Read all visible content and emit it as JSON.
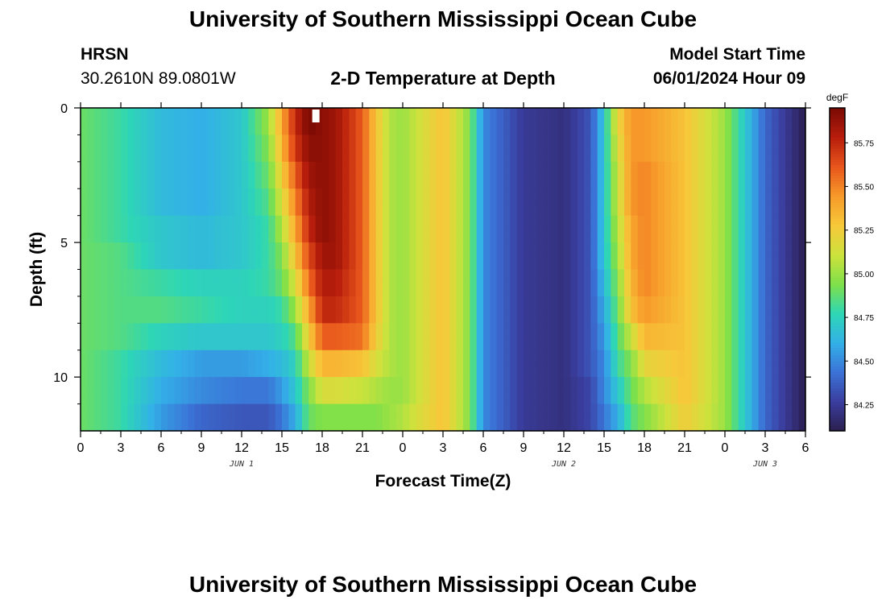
{
  "header": {
    "title": "University of Southern Mississippi Ocean Cube",
    "station": "HRSN",
    "coords": "30.2610N  89.0801W",
    "chart_title": "2-D Temperature at Depth",
    "model_label": "Model Start Time",
    "model_time": "06/01/2024 Hour 09"
  },
  "footer": {
    "title": "University of Southern Mississippi Ocean Cube"
  },
  "colors": {
    "ramp": [
      "#2b1f4e",
      "#3a3d9e",
      "#3b72d6",
      "#33b0e8",
      "#2ed6b6",
      "#7ee04a",
      "#cde23c",
      "#f7c93a",
      "#f79a2a",
      "#e8561c",
      "#b81e0c",
      "#7a0a04"
    ]
  },
  "chart_data": {
    "type": "heatmap",
    "title": "2-D Temperature at Depth",
    "xlabel": "Forecast Time(Z)",
    "ylabel": "Depth (ft)",
    "x_ticks": [
      "0",
      "3",
      "6",
      "9",
      "12",
      "15",
      "18",
      "21",
      "0",
      "3",
      "6",
      "9",
      "12",
      "15",
      "18",
      "21",
      "0",
      "3",
      "6"
    ],
    "date_labels": [
      {
        "text": "JUN 1",
        "at_hour": 12
      },
      {
        "text": "JUN 2",
        "at_hour": 36
      },
      {
        "text": "JUN 3",
        "at_hour": 51
      }
    ],
    "x_range_hours": [
      0,
      54
    ],
    "y_ticks": [
      0,
      5,
      10
    ],
    "ylim": [
      0,
      12
    ],
    "colorbar": {
      "unit": "degF",
      "vmin": 84.1,
      "vmax": 85.95,
      "tick_labels": [
        "85.75",
        "85.50",
        "85.25",
        "85.00",
        "84.75",
        "84.50",
        "84.25"
      ],
      "tick_values": [
        85.75,
        85.5,
        85.25,
        85.0,
        84.75,
        84.5,
        84.25
      ]
    },
    "marker_hour": 17.5,
    "column_hours": [
      0,
      3,
      6,
      9,
      12,
      14,
      15,
      16,
      17,
      18,
      19,
      21,
      22,
      23,
      24,
      27,
      29,
      30,
      33,
      36,
      38,
      39,
      40,
      41,
      42,
      45,
      48,
      51,
      54
    ],
    "depth_rows": [
      0,
      0.5,
      1,
      1.5,
      2,
      2.5,
      3,
      3.5,
      4,
      4.5,
      5,
      5.5,
      6,
      6.5,
      7,
      7.5,
      8,
      8.5,
      9,
      9.5,
      10,
      10.5,
      11,
      11.5,
      12
    ],
    "temperature_degF": [
      [
        84.9,
        84.8,
        84.65,
        84.6,
        84.7,
        85.0,
        85.4,
        85.75,
        85.95,
        85.9,
        85.85,
        85.6,
        85.3,
        85.05,
        85.0,
        85.3,
        84.95,
        84.5,
        84.25,
        84.2,
        84.35,
        84.7,
        85.2,
        85.45,
        85.45,
        85.3,
        85.0,
        84.4,
        84.1
      ],
      [
        84.9,
        84.8,
        84.65,
        84.6,
        84.7,
        85.0,
        85.4,
        85.75,
        85.95,
        85.9,
        85.85,
        85.6,
        85.3,
        85.05,
        85.0,
        85.3,
        84.95,
        84.5,
        84.25,
        84.2,
        84.35,
        84.7,
        85.2,
        85.45,
        85.45,
        85.3,
        85.0,
        84.4,
        84.1
      ],
      [
        84.9,
        84.8,
        84.65,
        84.6,
        84.7,
        84.95,
        85.35,
        85.7,
        85.9,
        85.9,
        85.85,
        85.6,
        85.3,
        85.05,
        85.0,
        85.3,
        84.95,
        84.5,
        84.25,
        84.2,
        84.35,
        84.7,
        85.15,
        85.45,
        85.45,
        85.3,
        85.0,
        84.4,
        84.1
      ],
      [
        84.9,
        84.8,
        84.65,
        84.6,
        84.7,
        84.95,
        85.35,
        85.7,
        85.9,
        85.9,
        85.85,
        85.6,
        85.3,
        85.05,
        85.0,
        85.3,
        84.95,
        84.5,
        84.25,
        84.2,
        84.35,
        84.7,
        85.15,
        85.45,
        85.45,
        85.3,
        85.0,
        84.4,
        84.1
      ],
      [
        84.9,
        84.8,
        84.65,
        84.6,
        84.7,
        84.9,
        85.25,
        85.6,
        85.85,
        85.9,
        85.85,
        85.6,
        85.3,
        85.05,
        85.0,
        85.3,
        84.95,
        84.5,
        84.25,
        84.2,
        84.35,
        84.7,
        85.1,
        85.45,
        85.5,
        85.3,
        85.0,
        84.4,
        84.1
      ],
      [
        84.9,
        84.8,
        84.65,
        84.6,
        84.7,
        84.9,
        85.25,
        85.6,
        85.85,
        85.9,
        85.85,
        85.6,
        85.3,
        85.05,
        85.0,
        85.3,
        84.95,
        84.5,
        84.25,
        84.2,
        84.35,
        84.7,
        85.1,
        85.45,
        85.5,
        85.3,
        85.0,
        84.4,
        84.1
      ],
      [
        84.9,
        84.8,
        84.65,
        84.6,
        84.7,
        84.85,
        85.15,
        85.5,
        85.8,
        85.9,
        85.85,
        85.6,
        85.3,
        85.05,
        85.0,
        85.3,
        84.95,
        84.5,
        84.25,
        84.2,
        84.35,
        84.7,
        85.1,
        85.45,
        85.5,
        85.3,
        85.0,
        84.4,
        84.1
      ],
      [
        84.9,
        84.8,
        84.65,
        84.6,
        84.7,
        84.85,
        85.15,
        85.5,
        85.8,
        85.9,
        85.85,
        85.6,
        85.3,
        85.05,
        85.0,
        85.3,
        84.95,
        84.5,
        84.25,
        84.2,
        84.35,
        84.7,
        85.1,
        85.45,
        85.5,
        85.3,
        85.0,
        84.4,
        84.1
      ],
      [
        84.9,
        84.8,
        84.7,
        84.65,
        84.7,
        84.8,
        85.05,
        85.4,
        85.75,
        85.9,
        85.85,
        85.6,
        85.3,
        85.05,
        85.0,
        85.3,
        84.95,
        84.5,
        84.25,
        84.2,
        84.35,
        84.7,
        85.05,
        85.4,
        85.5,
        85.3,
        85.0,
        84.4,
        84.1
      ],
      [
        84.9,
        84.8,
        84.7,
        84.65,
        84.7,
        84.8,
        85.05,
        85.4,
        85.75,
        85.9,
        85.85,
        85.6,
        85.3,
        85.05,
        85.0,
        85.3,
        84.95,
        84.5,
        84.25,
        84.2,
        84.35,
        84.7,
        85.05,
        85.4,
        85.5,
        85.3,
        85.0,
        84.4,
        84.1
      ],
      [
        84.9,
        84.85,
        84.7,
        84.65,
        84.7,
        84.8,
        84.95,
        85.3,
        85.65,
        85.85,
        85.85,
        85.6,
        85.3,
        85.05,
        85.0,
        85.3,
        84.95,
        84.5,
        84.25,
        84.2,
        84.35,
        84.7,
        85.0,
        85.4,
        85.5,
        85.3,
        85.0,
        84.4,
        84.1
      ],
      [
        84.9,
        84.85,
        84.7,
        84.65,
        84.7,
        84.8,
        84.95,
        85.3,
        85.65,
        85.85,
        85.85,
        85.6,
        85.3,
        85.05,
        85.0,
        85.3,
        84.95,
        84.5,
        84.25,
        84.2,
        84.35,
        84.7,
        85.0,
        85.4,
        85.5,
        85.3,
        85.0,
        84.4,
        84.1
      ],
      [
        84.9,
        84.85,
        84.8,
        84.75,
        84.75,
        84.8,
        84.9,
        85.15,
        85.55,
        85.8,
        85.8,
        85.6,
        85.3,
        85.05,
        85.0,
        85.3,
        84.95,
        84.5,
        84.25,
        84.2,
        84.35,
        84.65,
        84.95,
        85.35,
        85.5,
        85.3,
        85.0,
        84.4,
        84.1
      ],
      [
        84.9,
        84.85,
        84.8,
        84.75,
        84.75,
        84.8,
        84.9,
        85.15,
        85.55,
        85.8,
        85.8,
        85.6,
        85.3,
        85.05,
        85.0,
        85.3,
        84.95,
        84.5,
        84.25,
        84.2,
        84.35,
        84.65,
        84.95,
        85.35,
        85.5,
        85.3,
        85.0,
        84.4,
        84.1
      ],
      [
        84.9,
        84.85,
        84.85,
        84.8,
        84.75,
        84.75,
        84.8,
        85.0,
        85.4,
        85.75,
        85.75,
        85.6,
        85.3,
        85.05,
        85.0,
        85.3,
        84.95,
        84.5,
        84.25,
        84.2,
        84.35,
        84.6,
        84.9,
        85.3,
        85.45,
        85.3,
        85.0,
        84.4,
        84.1
      ],
      [
        84.9,
        84.85,
        84.85,
        84.8,
        84.75,
        84.75,
        84.8,
        85.0,
        85.4,
        85.75,
        85.75,
        85.6,
        85.3,
        85.05,
        85.0,
        85.3,
        84.95,
        84.5,
        84.25,
        84.2,
        84.35,
        84.6,
        84.9,
        85.3,
        85.45,
        85.3,
        85.0,
        84.4,
        84.1
      ],
      [
        84.9,
        84.85,
        84.75,
        84.7,
        84.7,
        84.7,
        84.75,
        84.85,
        85.25,
        85.6,
        85.6,
        85.55,
        85.25,
        85.05,
        85.0,
        85.3,
        84.95,
        84.5,
        84.25,
        84.2,
        84.35,
        84.55,
        84.85,
        85.1,
        85.35,
        85.3,
        85.0,
        84.4,
        84.1
      ],
      [
        84.9,
        84.85,
        84.75,
        84.7,
        84.7,
        84.7,
        84.75,
        84.85,
        85.25,
        85.6,
        85.6,
        85.55,
        85.25,
        85.05,
        85.0,
        85.3,
        84.95,
        84.5,
        84.25,
        84.2,
        84.35,
        84.55,
        84.85,
        85.1,
        85.35,
        85.3,
        85.0,
        84.4,
        84.1
      ],
      [
        84.9,
        84.8,
        84.65,
        84.55,
        84.55,
        84.6,
        84.65,
        84.75,
        85.1,
        85.35,
        85.35,
        85.3,
        85.15,
        85.05,
        85.0,
        85.3,
        84.95,
        84.5,
        84.25,
        84.2,
        84.35,
        84.5,
        84.8,
        84.95,
        85.2,
        85.3,
        85.0,
        84.4,
        84.1
      ],
      [
        84.9,
        84.8,
        84.65,
        84.55,
        84.55,
        84.6,
        84.65,
        84.75,
        85.1,
        85.35,
        85.35,
        85.3,
        85.15,
        85.05,
        85.0,
        85.3,
        84.95,
        84.5,
        84.25,
        84.2,
        84.35,
        84.5,
        84.8,
        84.95,
        85.2,
        85.3,
        85.0,
        84.4,
        84.1
      ],
      [
        84.9,
        84.8,
        84.6,
        84.5,
        84.45,
        84.45,
        84.55,
        84.7,
        84.95,
        85.15,
        85.15,
        85.1,
        85.05,
        85.0,
        85.0,
        85.3,
        84.95,
        84.5,
        84.25,
        84.2,
        84.3,
        84.5,
        84.7,
        84.9,
        85.05,
        85.3,
        85.0,
        84.4,
        84.1
      ],
      [
        84.9,
        84.8,
        84.6,
        84.5,
        84.45,
        84.45,
        84.55,
        84.7,
        84.95,
        85.15,
        85.15,
        85.1,
        85.05,
        85.0,
        85.0,
        85.3,
        84.95,
        84.5,
        84.25,
        84.2,
        84.3,
        84.5,
        84.7,
        84.9,
        85.05,
        85.3,
        85.0,
        84.4,
        84.1
      ],
      [
        84.9,
        84.8,
        84.55,
        84.4,
        84.35,
        84.35,
        84.45,
        84.6,
        84.9,
        84.95,
        84.95,
        84.95,
        84.95,
        85.0,
        85.05,
        85.3,
        84.95,
        84.5,
        84.25,
        84.2,
        84.3,
        84.45,
        84.6,
        84.85,
        84.95,
        85.25,
        85.0,
        84.4,
        84.1
      ],
      [
        84.9,
        84.8,
        84.55,
        84.4,
        84.35,
        84.35,
        84.45,
        84.6,
        84.9,
        84.95,
        84.95,
        84.95,
        84.95,
        85.0,
        85.05,
        85.3,
        84.95,
        84.5,
        84.25,
        84.2,
        84.3,
        84.45,
        84.6,
        84.85,
        84.95,
        85.25,
        85.0,
        84.4,
        84.1
      ],
      [
        84.9,
        84.75,
        84.5,
        84.35,
        84.25,
        84.3,
        84.4,
        84.55,
        84.8,
        84.85,
        84.85,
        84.85,
        84.9,
        85.0,
        85.1,
        85.3,
        84.95,
        84.5,
        84.25,
        84.15,
        84.25,
        84.4,
        84.55,
        84.75,
        84.9,
        85.2,
        85.0,
        84.4,
        84.1
      ]
    ]
  }
}
